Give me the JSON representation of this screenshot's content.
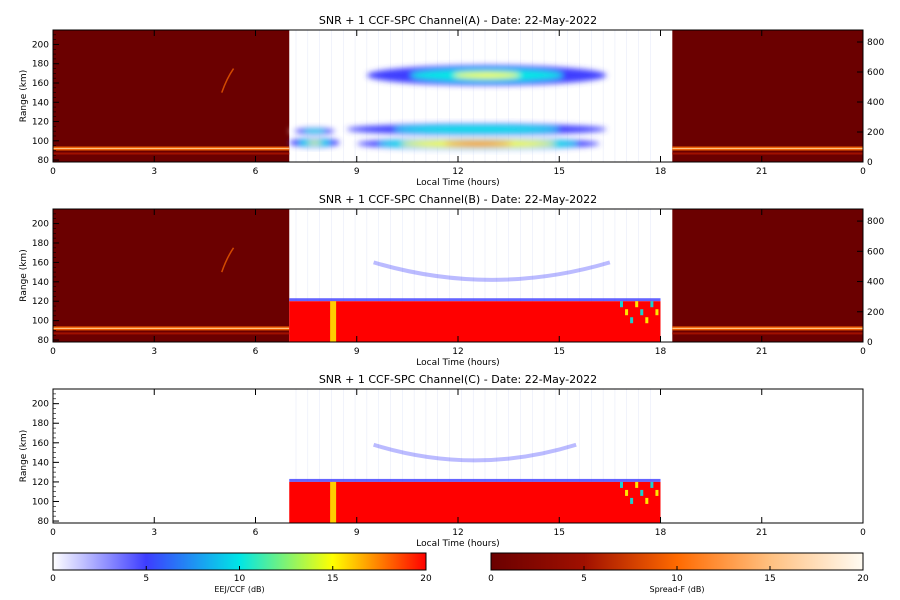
{
  "chart_data": [
    {
      "type": "heatmap",
      "title": "SNR + 1 CCF-SPC Channel(A) - Date: 22-May-2022",
      "xlabel": "Local Time (hours)",
      "ylabel": "Range (km)",
      "xlim": [
        0,
        24
      ],
      "ylim": [
        78,
        215
      ],
      "y2lim": [
        0,
        880
      ],
      "xticks": [
        "0",
        "3",
        "6",
        "9",
        "12",
        "15",
        "18",
        "21",
        "0"
      ],
      "yticks": [
        "80",
        "100",
        "120",
        "140",
        "160",
        "180",
        "200"
      ],
      "y2ticks": [
        "0",
        "200",
        "400",
        "600",
        "800"
      ],
      "spread_f_blocks": [
        {
          "start_hour": 0,
          "end_hour": 7.0
        },
        {
          "start_hour": 18.35,
          "end_hour": 24
        }
      ],
      "night_ionogram_trace": {
        "altitude_km": 92
      },
      "ccf_regions": [
        {
          "start_hour": 9.3,
          "end_hour": 16.4,
          "center_km": 168,
          "half_width_km": 9,
          "peak_db": 14
        },
        {
          "start_hour": 8.7,
          "end_hour": 16.4,
          "center_km": 112,
          "half_width_km": 5,
          "peak_db": 12
        },
        {
          "start_hour": 9.0,
          "end_hour": 16.2,
          "center_km": 97,
          "half_width_km": 5,
          "peak_db": 20
        },
        {
          "start_hour": 7.0,
          "end_hour": 8.5,
          "center_km": 110,
          "half_width_km": 4,
          "peak_db": 9
        },
        {
          "start_hour": 7.0,
          "end_hour": 8.5,
          "center_km": 98,
          "half_width_km": 4,
          "peak_db": 13
        }
      ]
    },
    {
      "type": "heatmap",
      "title": "SNR + 1 CCF-SPC Channel(B) - Date: 22-May-2022",
      "xlabel": "Local Time (hours)",
      "ylabel": "Range (km)",
      "xlim": [
        0,
        24
      ],
      "ylim": [
        78,
        215
      ],
      "y2lim": [
        0,
        880
      ],
      "xticks": [
        "0",
        "3",
        "6",
        "9",
        "12",
        "15",
        "18",
        "21",
        "0"
      ],
      "yticks": [
        "80",
        "100",
        "120",
        "140",
        "160",
        "180",
        "200"
      ],
      "y2ticks": [
        "0",
        "200",
        "400",
        "600",
        "800"
      ],
      "spread_f_blocks": [
        {
          "start_hour": 0,
          "end_hour": 7.0
        },
        {
          "start_hour": 18.35,
          "end_hour": 24
        }
      ],
      "night_ionogram_trace": {
        "altitude_km": 92
      },
      "eej_band": {
        "start_hour": 7.0,
        "end_hour": 18.0,
        "bottom_km": 78,
        "top_km": 120,
        "peak_db": 20
      },
      "faint_arc": {
        "start_hour": 9.5,
        "end_hour": 16.5,
        "min_km": 142,
        "edge_km": 160
      }
    },
    {
      "type": "heatmap",
      "title": "SNR + 1 CCF-SPC Channel(C) - Date: 22-May-2022",
      "xlabel": "Local Time (hours)",
      "ylabel": "Range (km)",
      "xlim": [
        0,
        24
      ],
      "ylim": [
        78,
        215
      ],
      "xticks": [
        "0",
        "3",
        "6",
        "9",
        "12",
        "15",
        "18",
        "21",
        "0"
      ],
      "yticks": [
        "80",
        "100",
        "120",
        "140",
        "160",
        "180",
        "200"
      ],
      "spread_f_blocks": [],
      "eej_band": {
        "start_hour": 7.0,
        "end_hour": 18.0,
        "bottom_km": 78,
        "top_km": 120,
        "peak_db": 20
      },
      "faint_arc": {
        "start_hour": 9.5,
        "end_hour": 15.5,
        "min_km": 142,
        "edge_km": 158
      }
    }
  ],
  "colorbars": [
    {
      "label": "EEJ/CCF (dB)",
      "min": 0,
      "max": 20,
      "ticks": [
        "0",
        "5",
        "10",
        "15",
        "20"
      ],
      "colormap": "white-blue-cyan-yellow-red",
      "colors": [
        "#ffffff",
        "#3d3dff",
        "#00e6e6",
        "#ffff00",
        "#ff0000"
      ]
    },
    {
      "label": "Spread-F (dB)",
      "min": 0,
      "max": 20,
      "ticks": [
        "0",
        "5",
        "10",
        "15",
        "20"
      ],
      "colormap": "darkred-orange-white",
      "colors": [
        "#6b0000",
        "#a01000",
        "#ff6a00",
        "#ffc080",
        "#fffbf2"
      ]
    }
  ]
}
